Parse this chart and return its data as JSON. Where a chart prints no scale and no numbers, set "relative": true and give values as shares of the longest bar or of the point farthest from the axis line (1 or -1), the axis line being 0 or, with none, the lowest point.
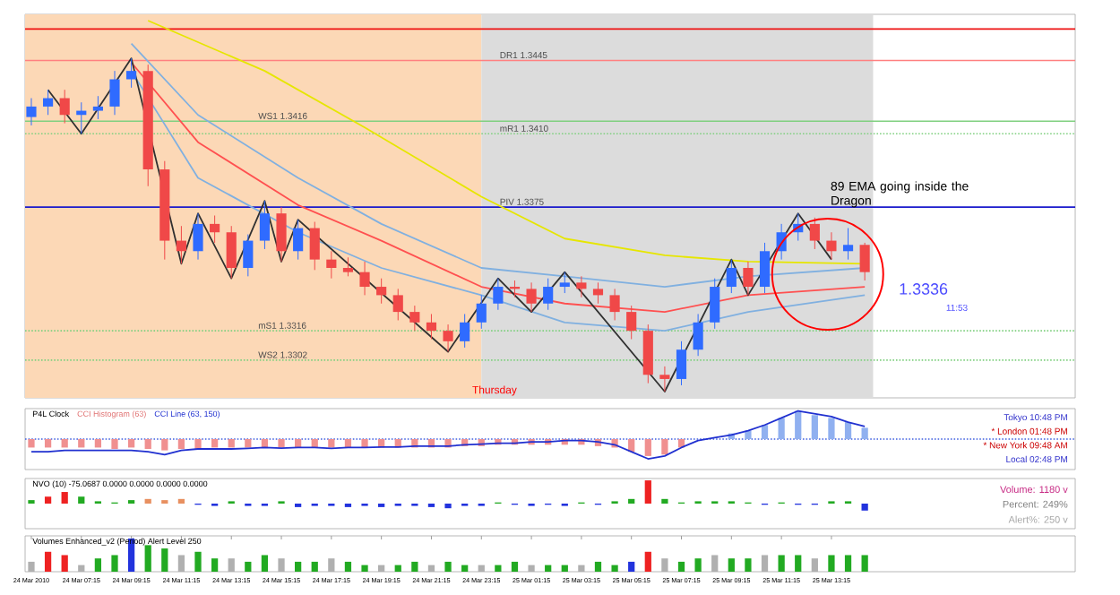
{
  "chart_data": [
    {
      "type": "candlestick",
      "x": [
        "2010-03-24T05:15",
        "2010-03-24T05:55",
        "2010-03-24T06:35",
        "2010-03-24T07:15",
        "2010-03-24T07:55",
        "2010-03-24T08:35",
        "2010-03-24T09:15",
        "2010-03-24T09:55",
        "2010-03-24T10:35",
        "2010-03-24T11:15",
        "2010-03-24T11:55",
        "2010-03-24T12:35",
        "2010-03-24T13:15",
        "2010-03-24T13:55",
        "2010-03-24T14:35",
        "2010-03-24T15:15",
        "2010-03-24T15:55",
        "2010-03-24T16:35",
        "2010-03-24T17:15",
        "2010-03-24T17:55",
        "2010-03-24T18:35",
        "2010-03-24T19:15",
        "2010-03-24T19:55",
        "2010-03-24T20:35",
        "2010-03-24T21:15",
        "2010-03-24T21:55",
        "2010-03-24T22:35",
        "2010-03-24T23:15",
        "2010-03-24T23:55",
        "2010-03-25T00:35",
        "2010-03-25T01:15",
        "2010-03-25T01:55",
        "2010-03-25T02:35",
        "2010-03-25T03:15",
        "2010-03-25T03:55",
        "2010-03-25T04:35",
        "2010-03-25T05:15",
        "2010-03-25T05:55",
        "2010-03-25T06:35",
        "2010-03-25T07:15",
        "2010-03-25T07:55",
        "2010-03-25T08:35",
        "2010-03-25T09:15",
        "2010-03-25T09:55",
        "2010-03-25T10:35",
        "2010-03-25T11:15",
        "2010-03-25T11:55",
        "2010-03-25T12:35",
        "2010-03-25T13:15",
        "2010-03-25T13:55",
        "2010-03-25T14:35"
      ],
      "ohlc": [
        [
          1.3418,
          1.3427,
          1.3414,
          1.3423
        ],
        [
          1.3423,
          1.3431,
          1.3419,
          1.3427
        ],
        [
          1.3427,
          1.3431,
          1.3415,
          1.3419
        ],
        [
          1.3419,
          1.3425,
          1.341,
          1.3421
        ],
        [
          1.3421,
          1.3428,
          1.3417,
          1.3423
        ],
        [
          1.3423,
          1.344,
          1.3419,
          1.3436
        ],
        [
          1.3436,
          1.3446,
          1.3432,
          1.344
        ],
        [
          1.344,
          1.3443,
          1.3385,
          1.3393
        ],
        [
          1.3393,
          1.3397,
          1.335,
          1.3359
        ],
        [
          1.3359,
          1.3366,
          1.3348,
          1.3354
        ],
        [
          1.3354,
          1.3372,
          1.335,
          1.3367
        ],
        [
          1.3367,
          1.3371,
          1.3358,
          1.3363
        ],
        [
          1.3363,
          1.3366,
          1.3341,
          1.3346
        ],
        [
          1.3346,
          1.3362,
          1.3342,
          1.3359
        ],
        [
          1.3359,
          1.3378,
          1.3355,
          1.3372
        ],
        [
          1.3372,
          1.3375,
          1.3349,
          1.3354
        ],
        [
          1.3354,
          1.3369,
          1.335,
          1.3365
        ],
        [
          1.3365,
          1.3368,
          1.3345,
          1.335
        ],
        [
          1.335,
          1.3354,
          1.3341,
          1.3346
        ],
        [
          1.3346,
          1.3351,
          1.3342,
          1.3344
        ],
        [
          1.3344,
          1.3349,
          1.3333,
          1.3337
        ],
        [
          1.3337,
          1.3341,
          1.3329,
          1.3333
        ],
        [
          1.3333,
          1.3336,
          1.3321,
          1.3325
        ],
        [
          1.3325,
          1.3328,
          1.3316,
          1.332
        ],
        [
          1.332,
          1.3324,
          1.3312,
          1.3316
        ],
        [
          1.3316,
          1.3319,
          1.3306,
          1.3311
        ],
        [
          1.3311,
          1.3324,
          1.3308,
          1.332
        ],
        [
          1.332,
          1.3333,
          1.3317,
          1.3329
        ],
        [
          1.3329,
          1.3341,
          1.3326,
          1.3337
        ],
        [
          1.3337,
          1.334,
          1.3332,
          1.3336
        ],
        [
          1.3336,
          1.3339,
          1.3325,
          1.3329
        ],
        [
          1.3329,
          1.3341,
          1.3326,
          1.3337
        ],
        [
          1.3337,
          1.3344,
          1.3334,
          1.3339
        ],
        [
          1.3339,
          1.3342,
          1.3332,
          1.3336
        ],
        [
          1.3336,
          1.3339,
          1.3329,
          1.3333
        ],
        [
          1.3333,
          1.3336,
          1.3321,
          1.3325
        ],
        [
          1.3325,
          1.3328,
          1.3312,
          1.3316
        ],
        [
          1.3316,
          1.3319,
          1.3291,
          1.3295
        ],
        [
          1.3295,
          1.3299,
          1.3287,
          1.3293
        ],
        [
          1.3293,
          1.3311,
          1.329,
          1.3307
        ],
        [
          1.3307,
          1.3324,
          1.3304,
          1.332
        ],
        [
          1.332,
          1.3341,
          1.3317,
          1.3337
        ],
        [
          1.3337,
          1.335,
          1.3334,
          1.3346
        ],
        [
          1.3346,
          1.3349,
          1.3333,
          1.3337
        ],
        [
          1.3337,
          1.3358,
          1.3334,
          1.3354
        ],
        [
          1.3354,
          1.3367,
          1.335,
          1.3363
        ],
        [
          1.3363,
          1.3372,
          1.3359,
          1.3367
        ],
        [
          1.3367,
          1.337,
          1.3355,
          1.3359
        ],
        [
          1.3359,
          1.3363,
          1.335,
          1.3354
        ],
        [
          1.3354,
          1.3365,
          1.335,
          1.3357
        ],
        [
          1.3357,
          1.3358,
          1.334,
          1.3344
        ]
      ],
      "series": [
        {
          "type": "line",
          "color": "#e6e600",
          "x": [
            "2010-03-24T09:55",
            "2010-03-24T14:35",
            "2010-03-24T18:35",
            "2010-03-24T23:15",
            "2010-03-25T02:35",
            "2010-03-25T06:35",
            "2010-03-25T09:55",
            "2010-03-25T14:35"
          ],
          "values": [
            1.3464,
            1.344,
            1.3413,
            1.338,
            1.336,
            1.3352,
            1.3349,
            1.3348
          ]
        },
        {
          "type": "line",
          "color": "#ff5050",
          "x": [
            "2010-03-24T09:15",
            "2010-03-24T11:55",
            "2010-03-24T15:55",
            "2010-03-24T19:15",
            "2010-03-24T23:15",
            "2010-03-25T02:35",
            "2010-03-25T06:35",
            "2010-03-25T09:55",
            "2010-03-25T14:35"
          ],
          "values": [
            1.3444,
            1.3406,
            1.3376,
            1.3359,
            1.3337,
            1.3329,
            1.3325,
            1.3333,
            1.3337
          ]
        },
        {
          "type": "line",
          "color": "#80b0e0",
          "x": [
            "2010-03-24T09:15",
            "2010-03-24T11:55",
            "2010-03-24T15:55",
            "2010-03-24T19:15",
            "2010-03-24T23:15",
            "2010-03-25T02:35",
            "2010-03-25T06:35",
            "2010-03-25T09:55",
            "2010-03-25T14:35"
          ],
          "values": [
            1.3453,
            1.3419,
            1.3389,
            1.3367,
            1.3346,
            1.3342,
            1.3337,
            1.3342,
            1.3346
          ]
        },
        {
          "type": "line",
          "color": "#80b0e0",
          "x": [
            "2010-03-24T09:15",
            "2010-03-24T11:55",
            "2010-03-24T15:55",
            "2010-03-24T19:15",
            "2010-03-24T23:15",
            "2010-03-25T02:35",
            "2010-03-25T06:35",
            "2010-03-25T09:55",
            "2010-03-25T14:35"
          ],
          "values": [
            1.344,
            1.3389,
            1.3363,
            1.3346,
            1.3333,
            1.332,
            1.3316,
            1.3325,
            1.3333
          ]
        },
        {
          "type": "line",
          "color": "#303030",
          "x": [
            "2010-03-24T05:55",
            "2010-03-24T07:15",
            "2010-03-24T09:15",
            "2010-03-24T11:15",
            "2010-03-24T11:55",
            "2010-03-24T13:15",
            "2010-03-24T14:35",
            "2010-03-24T15:15",
            "2010-03-24T15:55",
            "2010-03-24T21:55",
            "2010-03-24T23:55",
            "2010-03-25T01:15",
            "2010-03-25T02:35",
            "2010-03-25T06:35",
            "2010-03-25T09:15",
            "2010-03-25T09:55",
            "2010-03-25T11:55",
            "2010-03-25T13:15"
          ],
          "values": [
            1.3431,
            1.341,
            1.3446,
            1.3348,
            1.3372,
            1.3341,
            1.3378,
            1.3349,
            1.3369,
            1.3306,
            1.3341,
            1.3325,
            1.3344,
            1.3287,
            1.335,
            1.3333,
            1.3372,
            1.335
          ]
        }
      ],
      "xlim": [
        "2010-03-24T05:00",
        "2010-03-25T23:00"
      ],
      "ylim": [
        1.3284,
        1.3467
      ],
      "tick_labels": false,
      "bands": [
        {
          "axis": "x",
          "from": "2010-03-24T05:00",
          "to": "2010-03-24T23:15",
          "color": "#fcd8b6"
        },
        {
          "axis": "x",
          "from": "2010-03-24T23:15",
          "to": "2010-03-25T14:55",
          "color": "#dcdcdc"
        }
      ],
      "ref_lines": [
        {
          "axis": "y",
          "value": 1.346,
          "color": "#ee1111",
          "line_style": "solid"
        },
        {
          "axis": "y",
          "value": 1.3445,
          "label": "DR1  1.3445",
          "color": "#ff8080",
          "line_style": "solid"
        },
        {
          "axis": "y",
          "value": 1.3416,
          "label": "WS1  1.3416",
          "color": "#80d080",
          "line_style": "solid"
        },
        {
          "axis": "y",
          "value": 1.341,
          "label": "mR1  1.3410",
          "color": "#80d080",
          "line_style": "dotted"
        },
        {
          "axis": "y",
          "value": 1.3302,
          "label": "WS2  1.3302",
          "color": "#80d080",
          "line_style": "dotted"
        },
        {
          "axis": "y",
          "value": 1.3375,
          "label": "PIV  1.3375",
          "color": "#1a1acc",
          "line_style": "solid"
        },
        {
          "axis": "y",
          "value": 1.3316,
          "label": "mS1  1.3316",
          "color": "#80d080",
          "line_style": "dotted"
        }
      ],
      "annotations": [
        "89 EMA going inside the Dragon",
        "1.3336",
        "11:53",
        "Thursday"
      ]
    },
    {
      "type": "bar",
      "relative": true,
      "title": "P4L Clock",
      "x": [
        "2010-03-24T05:15",
        "2010-03-24T05:55",
        "2010-03-24T06:35",
        "2010-03-24T07:15",
        "2010-03-24T07:55",
        "2010-03-24T08:35",
        "2010-03-24T09:15",
        "2010-03-24T09:55",
        "2010-03-24T10:35",
        "2010-03-24T11:15",
        "2010-03-24T11:55",
        "2010-03-24T12:35",
        "2010-03-24T13:15",
        "2010-03-24T13:55",
        "2010-03-24T14:35",
        "2010-03-24T15:15",
        "2010-03-24T15:55",
        "2010-03-24T16:35",
        "2010-03-24T17:15",
        "2010-03-24T17:55",
        "2010-03-24T18:35",
        "2010-03-24T19:15",
        "2010-03-24T19:55",
        "2010-03-24T20:35",
        "2010-03-24T21:15",
        "2010-03-24T21:55",
        "2010-03-24T22:35",
        "2010-03-24T23:15",
        "2010-03-24T23:55",
        "2010-03-25T00:35",
        "2010-03-25T01:15",
        "2010-03-25T01:55",
        "2010-03-25T02:35",
        "2010-03-25T03:15",
        "2010-03-25T03:55",
        "2010-03-25T04:35",
        "2010-03-25T05:15",
        "2010-03-25T05:55",
        "2010-03-25T06:35",
        "2010-03-25T07:15",
        "2010-03-25T07:55",
        "2010-03-25T08:35",
        "2010-03-25T09:15",
        "2010-03-25T09:55",
        "2010-03-25T10:35",
        "2010-03-25T11:15",
        "2010-03-25T11:55",
        "2010-03-25T12:35",
        "2010-03-25T13:15",
        "2010-03-25T13:55",
        "2010-03-25T14:35"
      ],
      "series": [
        {
          "name": "CCI Histogram (63)",
          "type": "bar",
          "color": "#e07070",
          "values": [
            -0.3,
            -0.3,
            -0.3,
            -0.3,
            -0.3,
            -0.35,
            -0.3,
            -0.35,
            -0.4,
            -0.35,
            -0.35,
            -0.3,
            -0.3,
            -0.3,
            -0.3,
            -0.3,
            -0.3,
            -0.3,
            -0.3,
            -0.3,
            -0.3,
            -0.3,
            -0.3,
            -0.3,
            -0.3,
            -0.3,
            -0.25,
            -0.25,
            -0.2,
            -0.2,
            -0.2,
            -0.2,
            -0.2,
            -0.2,
            -0.25,
            -0.3,
            -0.45,
            -0.6,
            -0.55,
            -0.3,
            null,
            null,
            0.2,
            0.3,
            0.5,
            0.75,
            1.0,
            0.85,
            0.75,
            0.6,
            0.4
          ],
          "colors": [
            "#f09090",
            "#f09090",
            "#f09090",
            "#f09090",
            "#f09090",
            "#f09090",
            "#f09090",
            "#f09090",
            "#f09090",
            "#f09090",
            "#f09090",
            "#f09090",
            "#f09090",
            "#f09090",
            "#f09090",
            "#f09090",
            "#f09090",
            "#f09090",
            "#f09090",
            "#f09090",
            "#f09090",
            "#f09090",
            "#f09090",
            "#f09090",
            "#f09090",
            "#f09090",
            "#f09090",
            "#f09090",
            "#f09090",
            "#f09090",
            "#f09090",
            "#f09090",
            "#f09090",
            "#f09090",
            "#f09090",
            "#f09090",
            "#f09090",
            "#f09090",
            "#f09090",
            "#f09090",
            "#f09090",
            "#90b0f0",
            "#90b0f0",
            "#90b0f0",
            "#90b0f0",
            "#90b0f0",
            "#90b0f0",
            "#90b0f0",
            "#90b0f0",
            "#90b0f0",
            "#90b0f0"
          ]
        },
        {
          "name": "CCI Line (63, 150)",
          "type": "line",
          "color": "#2030d0",
          "values": [
            -0.45,
            -0.45,
            -0.4,
            -0.4,
            -0.4,
            -0.4,
            -0.4,
            -0.45,
            -0.55,
            -0.4,
            -0.35,
            -0.35,
            -0.35,
            -0.33,
            -0.3,
            -0.32,
            -0.3,
            -0.3,
            -0.33,
            -0.3,
            -0.3,
            -0.28,
            -0.28,
            -0.25,
            -0.25,
            -0.25,
            -0.2,
            -0.18,
            -0.15,
            -0.15,
            -0.1,
            -0.1,
            -0.05,
            -0.05,
            -0.1,
            -0.2,
            -0.45,
            -0.7,
            -0.6,
            -0.3,
            -0.05,
            0.05,
            0.15,
            0.3,
            0.5,
            0.75,
            1.0,
            0.9,
            0.8,
            0.6,
            0.45
          ]
        }
      ],
      "xlim": [
        "2010-03-24T05:00",
        "2010-03-25T23:00"
      ],
      "tick_labels": false,
      "ref_lines": [
        {
          "axis": "y",
          "value": 0,
          "color": "#4060e0",
          "line_style": "dotted"
        }
      ],
      "annotations": [
        "Tokyo  10:48 PM",
        "* London  01:48 PM",
        "* New York  09:48 AM",
        "Local  02:48 PM"
      ]
    },
    {
      "type": "bar",
      "relative": true,
      "title": "NVO (10) -75.0687 0.0000 0.0000 0.0000 0.0000",
      "x": [
        "2010-03-24T05:15",
        "2010-03-24T05:55",
        "2010-03-24T06:35",
        "2010-03-24T07:15",
        "2010-03-24T07:55",
        "2010-03-24T08:35",
        "2010-03-24T09:15",
        "2010-03-24T09:55",
        "2010-03-24T10:35",
        "2010-03-24T11:15",
        "2010-03-24T11:55",
        "2010-03-24T12:35",
        "2010-03-24T13:15",
        "2010-03-24T13:55",
        "2010-03-24T14:35",
        "2010-03-24T15:15",
        "2010-03-24T15:55",
        "2010-03-24T16:35",
        "2010-03-24T17:15",
        "2010-03-24T17:55",
        "2010-03-24T18:35",
        "2010-03-24T19:15",
        "2010-03-24T19:55",
        "2010-03-24T20:35",
        "2010-03-24T21:15",
        "2010-03-24T21:55",
        "2010-03-24T22:35",
        "2010-03-24T23:15",
        "2010-03-24T23:55",
        "2010-03-25T00:35",
        "2010-03-25T01:15",
        "2010-03-25T01:55",
        "2010-03-25T02:35",
        "2010-03-25T03:15",
        "2010-03-25T03:55",
        "2010-03-25T04:35",
        "2010-03-25T05:15",
        "2010-03-25T05:55",
        "2010-03-25T06:35",
        "2010-03-25T07:15",
        "2010-03-25T07:55",
        "2010-03-25T08:35",
        "2010-03-25T09:15",
        "2010-03-25T09:55",
        "2010-03-25T10:35",
        "2010-03-25T11:15",
        "2010-03-25T11:55",
        "2010-03-25T12:35",
        "2010-03-25T13:15",
        "2010-03-25T13:55",
        "2010-03-25T14:35"
      ],
      "series": [
        {
          "type": "bar",
          "values": [
            0.15,
            0.3,
            0.5,
            0.3,
            0.1,
            0.05,
            0.15,
            0.2,
            0.15,
            0.2,
            -0.05,
            -0.1,
            0.1,
            -0.1,
            -0.1,
            0.1,
            -0.15,
            -0.1,
            -0.1,
            -0.15,
            -0.1,
            -0.15,
            -0.1,
            -0.1,
            -0.15,
            -0.2,
            -0.1,
            -0.1,
            0.05,
            -0.05,
            -0.1,
            -0.05,
            -0.1,
            0.05,
            -0.05,
            0.1,
            0.2,
            1.0,
            0.2,
            0.05,
            0.1,
            0.1,
            0.1,
            0.05,
            -0.05,
            0.05,
            -0.05,
            -0.05,
            0.1,
            0.1,
            -0.3
          ],
          "colors": [
            "#22aa22",
            "#ee2222",
            "#ee2222",
            "#22aa22",
            "#22aa22",
            "#22aa22",
            "#22aa22",
            "#e89060",
            "#e89060",
            "#e89060",
            "#2233dd",
            "#2233dd",
            "#22aa22",
            "#2233dd",
            "#2233dd",
            "#22aa22",
            "#2233dd",
            "#2233dd",
            "#2233dd",
            "#2233dd",
            "#2233dd",
            "#2233dd",
            "#2233dd",
            "#2233dd",
            "#2233dd",
            "#2233dd",
            "#2233dd",
            "#2233dd",
            "#22aa22",
            "#2233dd",
            "#2233dd",
            "#2233dd",
            "#2233dd",
            "#22aa22",
            "#2233dd",
            "#22aa22",
            "#22aa22",
            "#ee2222",
            "#22aa22",
            "#22aa22",
            "#22aa22",
            "#22aa22",
            "#22aa22",
            "#22aa22",
            "#2233dd",
            "#22aa22",
            "#2233dd",
            "#2233dd",
            "#22aa22",
            "#22aa22",
            "#2233dd"
          ]
        }
      ],
      "xlim": [
        "2010-03-24T05:00",
        "2010-03-25T23:00"
      ],
      "tick_labels": false,
      "annotations": [
        "Volume:  1180 v",
        "Percent:  249%",
        "Alert%:  250 v"
      ]
    },
    {
      "type": "bar",
      "relative": true,
      "title": "Volumes Enhanced_v2 (Period) Alert Level 250",
      "x": [
        "2010-03-24T05:15",
        "2010-03-24T05:55",
        "2010-03-24T06:35",
        "2010-03-24T07:15",
        "2010-03-24T07:55",
        "2010-03-24T08:35",
        "2010-03-24T09:15",
        "2010-03-24T09:55",
        "2010-03-24T10:35",
        "2010-03-24T11:15",
        "2010-03-24T11:55",
        "2010-03-24T12:35",
        "2010-03-24T13:15",
        "2010-03-24T13:55",
        "2010-03-24T14:35",
        "2010-03-24T15:15",
        "2010-03-24T15:55",
        "2010-03-24T16:35",
        "2010-03-24T17:15",
        "2010-03-24T17:55",
        "2010-03-24T18:35",
        "2010-03-24T19:15",
        "2010-03-24T19:55",
        "2010-03-24T20:35",
        "2010-03-24T21:15",
        "2010-03-24T21:55",
        "2010-03-24T22:35",
        "2010-03-24T23:15",
        "2010-03-24T23:55",
        "2010-03-25T00:35",
        "2010-03-25T01:15",
        "2010-03-25T01:55",
        "2010-03-25T02:35",
        "2010-03-25T03:15",
        "2010-03-25T03:55",
        "2010-03-25T04:35",
        "2010-03-25T05:15",
        "2010-03-25T05:55",
        "2010-03-25T06:35",
        "2010-03-25T07:15",
        "2010-03-25T07:55",
        "2010-03-25T08:35",
        "2010-03-25T09:15",
        "2010-03-25T09:55",
        "2010-03-25T10:35",
        "2010-03-25T11:15",
        "2010-03-25T11:55",
        "2010-03-25T12:35",
        "2010-03-25T13:15",
        "2010-03-25T13:55",
        "2010-03-25T14:35"
      ],
      "series": [
        {
          "type": "bar",
          "values": [
            0.3,
            0.6,
            0.5,
            0.2,
            0.4,
            0.5,
            1.0,
            0.8,
            0.7,
            0.5,
            0.6,
            0.4,
            0.4,
            0.3,
            0.5,
            0.4,
            0.3,
            0.3,
            0.4,
            0.3,
            0.2,
            0.2,
            0.2,
            0.3,
            0.2,
            0.3,
            0.2,
            0.2,
            0.2,
            0.3,
            0.2,
            0.2,
            0.2,
            0.2,
            0.3,
            0.2,
            0.3,
            0.6,
            0.4,
            0.3,
            0.4,
            0.5,
            0.4,
            0.4,
            0.5,
            0.5,
            0.5,
            0.4,
            0.5,
            0.5,
            0.5
          ],
          "colors": [
            "#b0b0b0",
            "#ee2222",
            "#ee2222",
            "#b0b0b0",
            "#22aa22",
            "#22aa22",
            "#2233dd",
            "#22aa22",
            "#22aa22",
            "#b0b0b0",
            "#22aa22",
            "#22aa22",
            "#b0b0b0",
            "#22aa22",
            "#22aa22",
            "#b0b0b0",
            "#22aa22",
            "#22aa22",
            "#b0b0b0",
            "#22aa22",
            "#22aa22",
            "#b0b0b0",
            "#22aa22",
            "#22aa22",
            "#b0b0b0",
            "#22aa22",
            "#22aa22",
            "#b0b0b0",
            "#22aa22",
            "#22aa22",
            "#b0b0b0",
            "#22aa22",
            "#22aa22",
            "#b0b0b0",
            "#22aa22",
            "#22aa22",
            "#2233dd",
            "#ee2222",
            "#b0b0b0",
            "#22aa22",
            "#22aa22",
            "#b0b0b0",
            "#22aa22",
            "#22aa22",
            "#b0b0b0",
            "#22aa22",
            "#22aa22",
            "#b0b0b0",
            "#22aa22",
            "#22aa22",
            "#22aa22"
          ]
        }
      ],
      "xlim": [
        "2010-03-24T05:00",
        "2010-03-25T23:00"
      ],
      "xticks": [
        {
          "value": "2010-03-24T05:15",
          "label": "24 Mar 2010"
        },
        {
          "value": "2010-03-24T07:15",
          "label": "24 Mar 07:15"
        },
        {
          "value": "2010-03-24T09:15",
          "label": "24 Mar 09:15"
        },
        {
          "value": "2010-03-24T11:15",
          "label": "24 Mar 11:15"
        },
        {
          "value": "2010-03-24T13:15",
          "label": "24 Mar 13:15"
        },
        {
          "value": "2010-03-24T15:15",
          "label": "24 Mar 15:15"
        },
        {
          "value": "2010-03-24T17:15",
          "label": "24 Mar 17:15"
        },
        {
          "value": "2010-03-24T19:15",
          "label": "24 Mar 19:15"
        },
        {
          "value": "2010-03-24T21:15",
          "label": "24 Mar 21:15"
        },
        {
          "value": "2010-03-24T23:15",
          "label": "24 Mar 23:15"
        },
        {
          "value": "2010-03-25T01:15",
          "label": "25 Mar 01:15"
        },
        {
          "value": "2010-03-25T03:15",
          "label": "25 Mar 03:15"
        },
        {
          "value": "2010-03-25T05:15",
          "label": "25 Mar 05:15"
        },
        {
          "value": "2010-03-25T07:15",
          "label": "25 Mar 07:15"
        },
        {
          "value": "2010-03-25T09:15",
          "label": "25 Mar 09:15"
        },
        {
          "value": "2010-03-25T11:15",
          "label": "25 Mar 11:15"
        },
        {
          "value": "2010-03-25T13:15",
          "label": "25 Mar 13:15"
        }
      ],
      "tick_labels": "x"
    }
  ]
}
